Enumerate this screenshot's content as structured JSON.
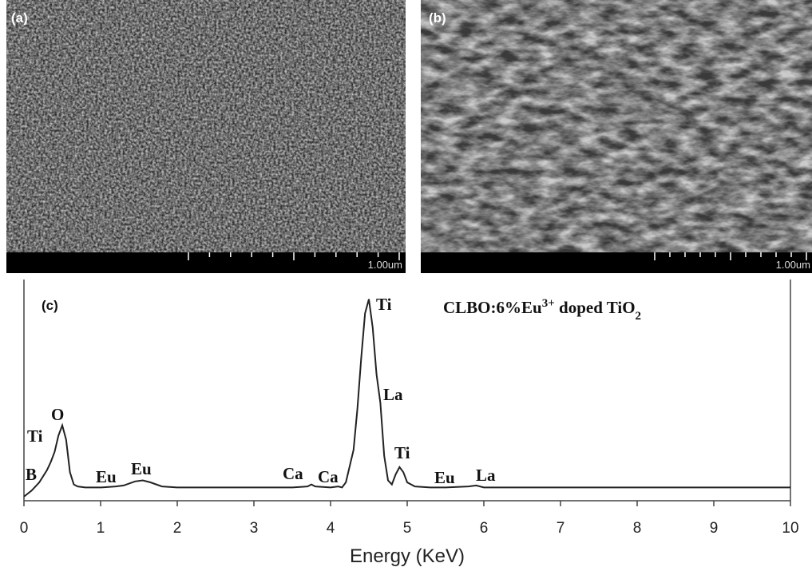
{
  "panels": [
    {
      "label": "(a)",
      "scale_bar": "1.00um"
    },
    {
      "label": "(b)",
      "scale_bar": "1.00um"
    }
  ],
  "chart_data": {
    "type": "line",
    "panel_label": "(c)",
    "title_parts": [
      "CLBO:6%Eu",
      "3+",
      " doped TiO",
      "2"
    ],
    "xlabel": "Energy (KeV)",
    "xlim": [
      0,
      10
    ],
    "xticks": [
      0,
      1,
      2,
      3,
      4,
      5,
      6,
      7,
      8,
      9,
      10
    ],
    "ylim": [
      0,
      100
    ],
    "x": [
      0,
      0.1,
      0.2,
      0.3,
      0.35,
      0.4,
      0.45,
      0.5,
      0.55,
      0.6,
      0.65,
      0.7,
      0.8,
      1.0,
      1.2,
      1.3,
      1.45,
      1.55,
      1.65,
      1.8,
      2.0,
      2.5,
      3.0,
      3.5,
      3.7,
      3.75,
      3.8,
      4.0,
      4.1,
      4.15,
      4.2,
      4.3,
      4.35,
      4.4,
      4.45,
      4.5,
      4.55,
      4.6,
      4.65,
      4.7,
      4.75,
      4.8,
      4.85,
      4.9,
      4.95,
      5.0,
      5.1,
      5.3,
      5.5,
      5.8,
      5.9,
      6.0,
      6.5,
      7,
      8,
      9,
      10
    ],
    "values": [
      2,
      5,
      9,
      15,
      19,
      24,
      32,
      37,
      30,
      14,
      8,
      7,
      6.5,
      6.5,
      7,
      7.5,
      9.5,
      10,
      9,
      7,
      6.5,
      6.5,
      6.5,
      6.5,
      7,
      8,
      7,
      6.5,
      7,
      6.5,
      9,
      25,
      45,
      70,
      92,
      99,
      85,
      62,
      48,
      22,
      10,
      8,
      13,
      16.5,
      14,
      9,
      7,
      6.5,
      6.5,
      7,
      7.5,
      6.5,
      6.5,
      6.5,
      6.5,
      6.5,
      6.5
    ],
    "color": "#222222",
    "peak_labels": [
      "B",
      "Ti",
      "O",
      "Eu",
      "Eu",
      "Ca",
      "Ca",
      "Ti",
      "La",
      "Ti",
      "Eu",
      "La"
    ]
  }
}
